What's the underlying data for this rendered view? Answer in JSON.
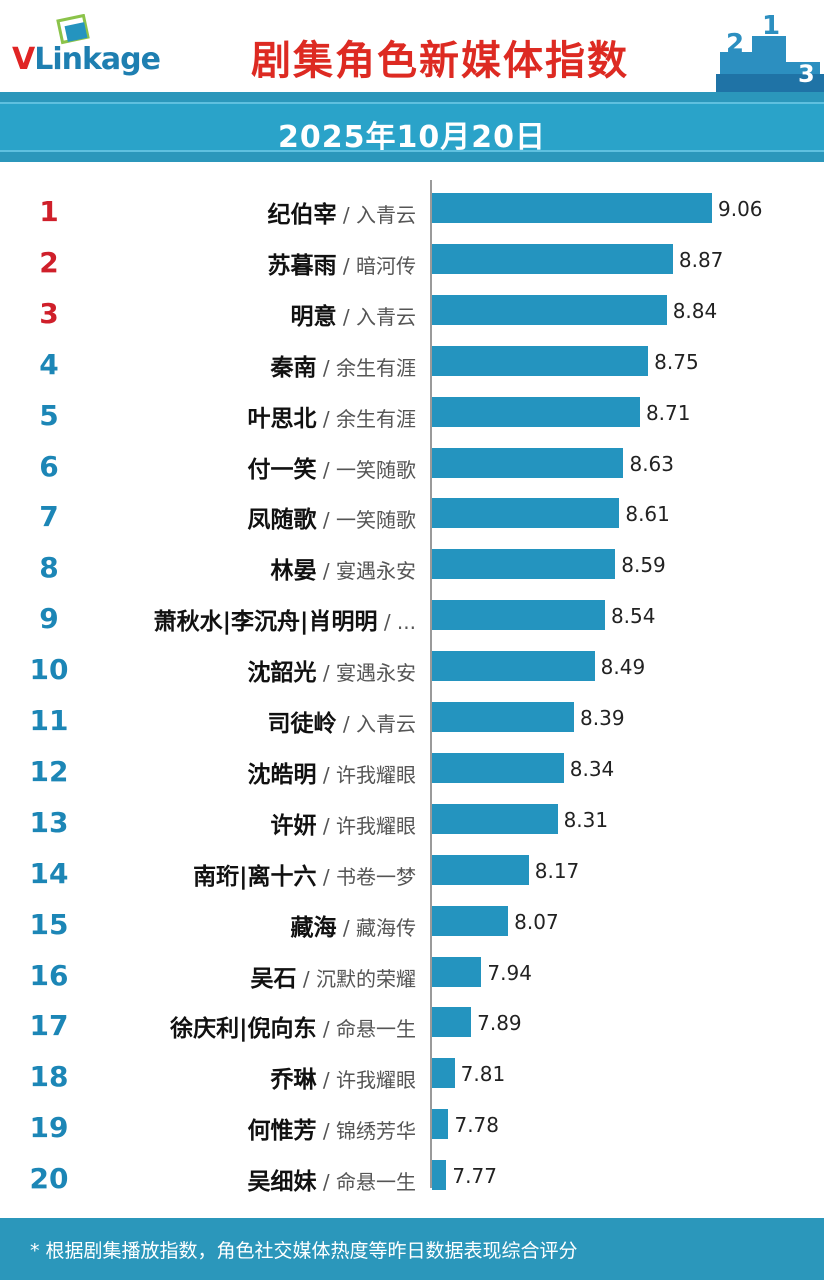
{
  "header": {
    "logo": {
      "v": "V",
      "rest": "Linkage"
    },
    "title": "剧集角色新媒体指数",
    "podium_digits": [
      "2",
      "1",
      "3"
    ]
  },
  "date": "2025年10月20日",
  "chart_data": {
    "type": "bar",
    "orientation": "horizontal",
    "title": "剧集角色新媒体指数",
    "subtitle": "2025年10月20日",
    "xlim": [
      7.7,
      9.1
    ],
    "categories": [
      {
        "rank": "1",
        "name": "纪伯宰",
        "drama": "入青云"
      },
      {
        "rank": "2",
        "name": "苏暮雨",
        "drama": "暗河传"
      },
      {
        "rank": "3",
        "name": "明意",
        "drama": "入青云"
      },
      {
        "rank": "4",
        "name": "秦南",
        "drama": "余生有涯"
      },
      {
        "rank": "5",
        "name": "叶思北",
        "drama": "余生有涯"
      },
      {
        "rank": "6",
        "name": "付一笑",
        "drama": "一笑随歌"
      },
      {
        "rank": "7",
        "name": "凤随歌",
        "drama": "一笑随歌"
      },
      {
        "rank": "8",
        "name": "林晏",
        "drama": "宴遇永安"
      },
      {
        "rank": "9",
        "name": "萧秋水|李沉舟|肖明明",
        "drama": "..."
      },
      {
        "rank": "10",
        "name": "沈韶光",
        "drama": "宴遇永安"
      },
      {
        "rank": "11",
        "name": "司徒岭",
        "drama": "入青云"
      },
      {
        "rank": "12",
        "name": "沈皓明",
        "drama": "许我耀眼"
      },
      {
        "rank": "13",
        "name": "许妍",
        "drama": "许我耀眼"
      },
      {
        "rank": "14",
        "name": "南珩|离十六",
        "drama": "书卷一梦"
      },
      {
        "rank": "15",
        "name": "藏海",
        "drama": "藏海传"
      },
      {
        "rank": "16",
        "name": "吴石",
        "drama": "沉默的荣耀"
      },
      {
        "rank": "17",
        "name": "徐庆利|倪向东",
        "drama": "命悬一生"
      },
      {
        "rank": "18",
        "name": "乔琳",
        "drama": "许我耀眼"
      },
      {
        "rank": "19",
        "name": "何惟芳",
        "drama": "锦绣芳华"
      },
      {
        "rank": "20",
        "name": "吴细妹",
        "drama": "命悬一生"
      }
    ],
    "values": [
      9.06,
      8.87,
      8.84,
      8.75,
      8.71,
      8.63,
      8.61,
      8.59,
      8.54,
      8.49,
      8.39,
      8.34,
      8.31,
      8.17,
      8.07,
      7.94,
      7.89,
      7.81,
      7.78,
      7.77
    ],
    "value_labels": [
      "9.06",
      "8.87",
      "8.84",
      "8.75",
      "8.71",
      "8.63",
      "8.61",
      "8.59",
      "8.54",
      "8.49",
      "8.39",
      "8.34",
      "8.31",
      "8.17",
      "8.07",
      "7.94",
      "7.89",
      "7.81",
      "7.78",
      "7.77"
    ],
    "label_separator": " / ",
    "bar_color": "#2494bf",
    "top_rank_color": "#cf1f2a",
    "rank_color": "#1c86b6",
    "legend": "none",
    "grid": false
  },
  "footer": {
    "note": "* 根据剧集播放指数，角色社交媒体热度等昨日数据表现综合评分"
  }
}
